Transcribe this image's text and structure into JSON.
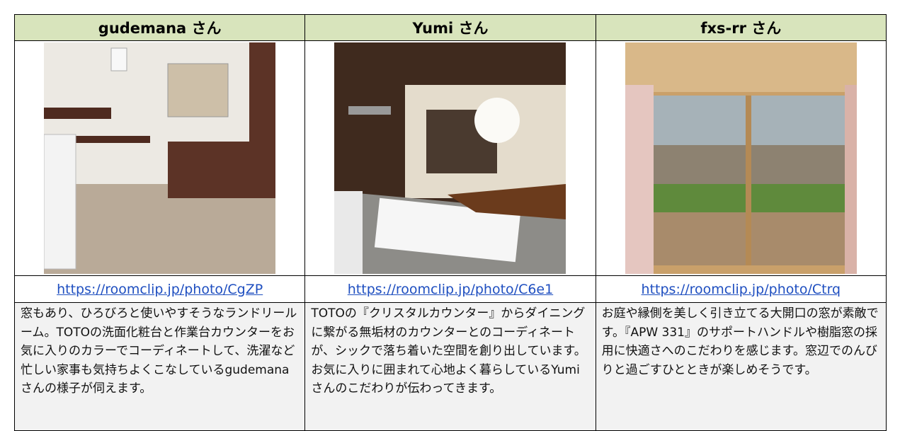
{
  "table": {
    "header": [
      "gudemana さん",
      "Yumi さん",
      "fxs-rr さん"
    ],
    "urls": [
      "https://roomclip.jp/photo/CgZP",
      "https://roomclip.jp/photo/C6e1",
      "https://roomclip.jp/photo/Ctrq"
    ],
    "descriptions": [
      "窓もあり、ひろびろと使いやすそうなランドリールーム。TOTOの洗面化粧台と作業台カウンターをお気に入りのカラーでコーディネートして、洗濯など忙しい家事も気持ちよくこなしているgudemanaさんの様子が伺えます。",
      "TOTOの『クリスタルカウンター』からダイニングに繋がる無垢材のカウンターとのコーディネートが、シックで落ち着いた空間を創り出しています。お気に入りに囲まれて心地よく暮らしているYumiさんのこだわりが伝わってきます。",
      "お庭や縁側を美しく引き立てる大開口の窓が素敵です。『APW 331』のサポートハンドルや樹脂窓の採用に快適さへのこだわりを感じます。窓辺でのんびりと過ごすひとときが楽しめそうです。"
    ]
  }
}
